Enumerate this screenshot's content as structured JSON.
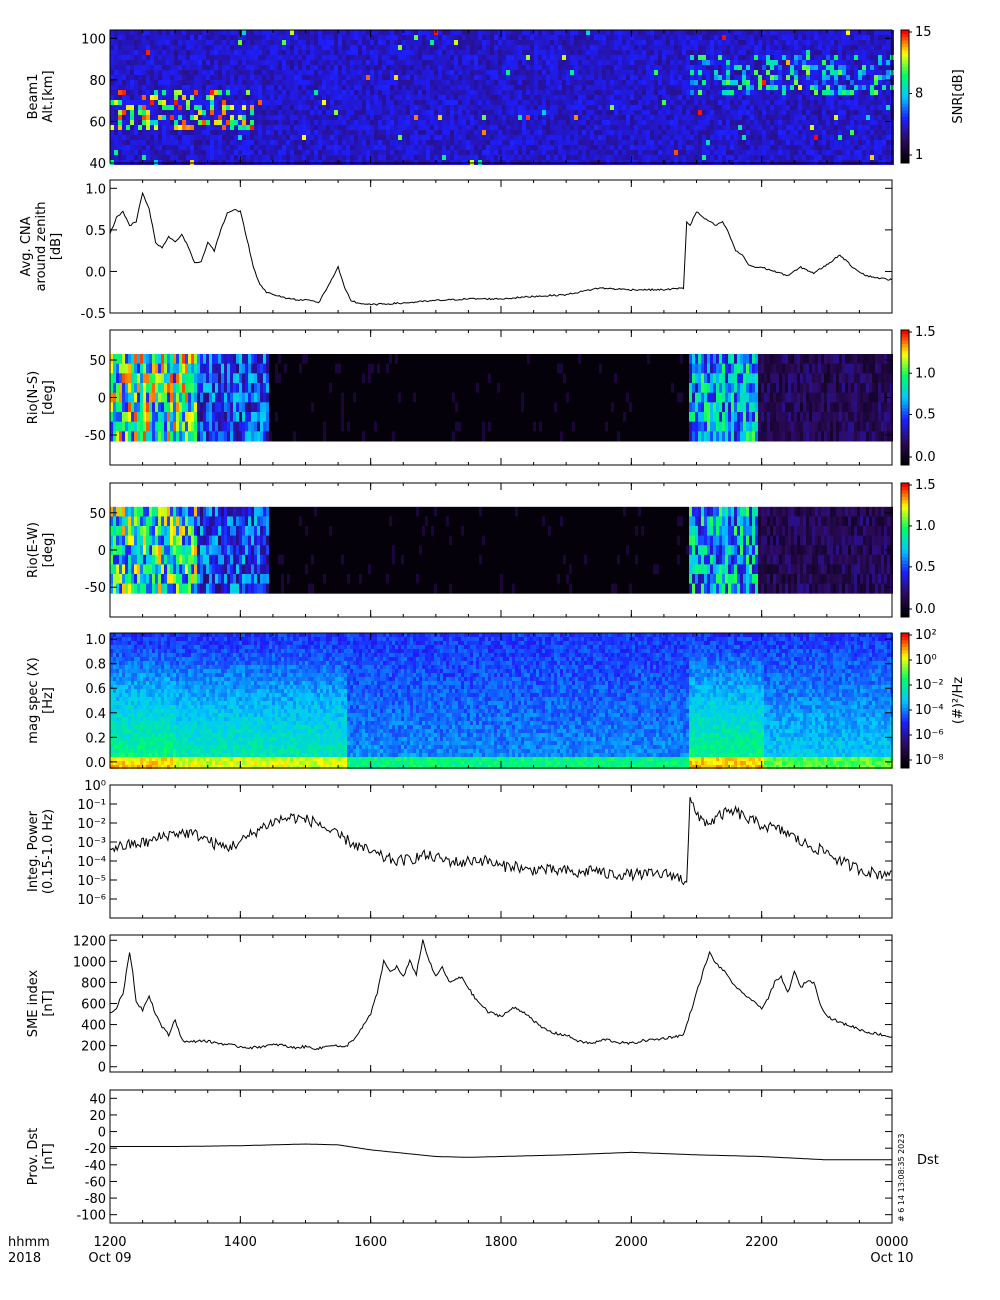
{
  "colors": {
    "line": "#000000",
    "spectrum_scale": [
      "#000000",
      "#2a0a5e",
      "#2020ff",
      "#00c8ff",
      "#00ff66",
      "#ffff00",
      "#ff0000"
    ]
  },
  "time_axis": {
    "ticks": [
      {
        "t": 1200,
        "label": "1200"
      },
      {
        "t": 1400,
        "label": "1400"
      },
      {
        "t": 1600,
        "label": "1600"
      },
      {
        "t": 1800,
        "label": "1800"
      },
      {
        "t": 2000,
        "label": "2000"
      },
      {
        "t": 2200,
        "label": "2200"
      },
      {
        "t": 2400,
        "label": "0000"
      }
    ],
    "row_labels": {
      "hhmm": "hhmm",
      "year": "2018"
    },
    "date_start": "Oct 09",
    "date_end": "Oct 10"
  },
  "footer": {
    "stamp": "# 6 14 13:08:35 2023",
    "dst_tag": "Dst"
  },
  "chart_data": [
    {
      "id": "beam1",
      "type": "heatmap",
      "ylabel": [
        "Beam1",
        "Alt.[km]"
      ],
      "ylim": [
        40,
        104
      ],
      "yticks": [
        {
          "v": 40,
          "label": "40"
        },
        {
          "v": 60,
          "label": "60"
        },
        {
          "v": 80,
          "label": "80"
        },
        {
          "v": 100,
          "label": "100"
        }
      ],
      "colorbar": {
        "label": "SNR[dB]",
        "ticks": [
          {
            "label": "15"
          },
          {
            "label": "8"
          },
          {
            "label": "1"
          }
        ]
      },
      "bands": [
        {
          "t0": 1200,
          "t1": 1420,
          "y0": 56,
          "y1": 76,
          "level": 0.55
        },
        {
          "t0": 2085,
          "t1": 2400,
          "y0": 75,
          "y1": 92,
          "level": 0.3
        }
      ]
    },
    {
      "id": "cna",
      "type": "line",
      "ylabel": [
        "Avg. CNA",
        "around zenith",
        "[dB]"
      ],
      "ylim": [
        -0.5,
        1.1
      ],
      "yticks": [
        {
          "v": -0.5,
          "label": "-0.5"
        },
        {
          "v": 0,
          "label": "0.0"
        },
        {
          "v": 0.5,
          "label": "0.5"
        },
        {
          "v": 1.0,
          "label": "1.0"
        }
      ],
      "x": [
        1200,
        1210,
        1220,
        1230,
        1240,
        1250,
        1260,
        1270,
        1280,
        1290,
        1300,
        1310,
        1320,
        1330,
        1340,
        1350,
        1360,
        1370,
        1380,
        1390,
        1400,
        1410,
        1420,
        1430,
        1440,
        1450,
        1460,
        1470,
        1480,
        1490,
        1500,
        1520,
        1540,
        1550,
        1560,
        1570,
        1580,
        1600,
        1650,
        1700,
        1750,
        1800,
        1850,
        1900,
        1950,
        2000,
        2050,
        2080,
        2085,
        2090,
        2100,
        2110,
        2120,
        2130,
        2140,
        2150,
        2160,
        2170,
        2180,
        2190,
        2200,
        2220,
        2240,
        2260,
        2280,
        2300,
        2320,
        2340,
        2360,
        2380,
        2400
      ],
      "values": [
        0.45,
        0.65,
        0.72,
        0.55,
        0.6,
        0.95,
        0.75,
        0.35,
        0.28,
        0.42,
        0.35,
        0.45,
        0.3,
        0.1,
        0.12,
        0.35,
        0.25,
        0.5,
        0.7,
        0.75,
        0.72,
        0.4,
        0.05,
        -0.15,
        -0.25,
        -0.28,
        -0.3,
        -0.32,
        -0.33,
        -0.35,
        -0.33,
        -0.38,
        -0.1,
        0.05,
        -0.2,
        -0.35,
        -0.38,
        -0.4,
        -0.38,
        -0.35,
        -0.33,
        -0.33,
        -0.3,
        -0.28,
        -0.2,
        -0.22,
        -0.22,
        -0.2,
        0.6,
        0.55,
        0.72,
        0.65,
        0.6,
        0.55,
        0.6,
        0.45,
        0.25,
        0.2,
        0.08,
        0.05,
        0.05,
        0.0,
        -0.05,
        0.05,
        -0.02,
        0.08,
        0.2,
        0.05,
        -0.05,
        -0.08,
        -0.1
      ]
    },
    {
      "id": "rio_ns",
      "type": "heatmap",
      "ylabel": [
        "Rio(N-S)",
        "[deg]"
      ],
      "ylim": [
        -90,
        90
      ],
      "yticks": [
        {
          "v": -50,
          "label": "-50"
        },
        {
          "v": 0,
          "label": "0"
        },
        {
          "v": 50,
          "label": "50"
        }
      ],
      "data_range": [
        -58,
        58
      ],
      "colorbar": {
        "ticks": [
          {
            "label": "1.5"
          },
          {
            "label": "1.0"
          },
          {
            "label": "0.5"
          },
          {
            "label": "0.0"
          }
        ]
      },
      "activity": [
        {
          "t0": 1200,
          "t1": 1330,
          "level": 0.8
        },
        {
          "t0": 1330,
          "t1": 1440,
          "level": 0.45
        },
        {
          "t0": 1440,
          "t1": 2085,
          "level": 0.0
        },
        {
          "t0": 2085,
          "t1": 2190,
          "level": 0.6
        },
        {
          "t0": 2190,
          "t1": 2400,
          "level": 0.18
        }
      ]
    },
    {
      "id": "rio_ew",
      "type": "heatmap",
      "ylabel": [
        "Rio(E-W)",
        "[deg]"
      ],
      "ylim": [
        -90,
        90
      ],
      "yticks": [
        {
          "v": -50,
          "label": "-50"
        },
        {
          "v": 0,
          "label": "0"
        },
        {
          "v": 50,
          "label": "50"
        }
      ],
      "data_range": [
        -58,
        58
      ],
      "colorbar": {
        "ticks": [
          {
            "label": "1.5"
          },
          {
            "label": "1.0"
          },
          {
            "label": "0.5"
          },
          {
            "label": "0.0"
          }
        ]
      },
      "activity": [
        {
          "t0": 1200,
          "t1": 1330,
          "level": 0.75
        },
        {
          "t0": 1330,
          "t1": 1440,
          "level": 0.45
        },
        {
          "t0": 1440,
          "t1": 2085,
          "level": 0.0
        },
        {
          "t0": 2085,
          "t1": 2190,
          "level": 0.6
        },
        {
          "t0": 2190,
          "t1": 2400,
          "level": 0.18
        }
      ]
    },
    {
      "id": "mag_spec",
      "type": "heatmap",
      "ylabel": [
        "mag spec (X)",
        "[Hz]"
      ],
      "ylim": [
        -0.05,
        1.05
      ],
      "yticks": [
        {
          "v": 0,
          "label": "0.0"
        },
        {
          "v": 0.2,
          "label": "0.2"
        },
        {
          "v": 0.4,
          "label": "0.4"
        },
        {
          "v": 0.6,
          "label": "0.6"
        },
        {
          "v": 0.8,
          "label": "0.8"
        },
        {
          "v": 1.0,
          "label": "1.0"
        }
      ],
      "colorbar": {
        "label": "(#)²/Hz",
        "ticks": [
          {
            "label": "10²"
          },
          {
            "label": "10⁰"
          },
          {
            "label": "10⁻²"
          },
          {
            "label": "10⁻⁴"
          },
          {
            "label": "10⁻⁶"
          },
          {
            "label": "10⁻⁸"
          }
        ]
      },
      "bursts": [
        {
          "t0": 1200,
          "t1": 1300,
          "level": 0.55
        },
        {
          "t0": 1300,
          "t1": 1560,
          "level": 0.45
        },
        {
          "t0": 1560,
          "t1": 2085,
          "level": 0.15
        },
        {
          "t0": 2085,
          "t1": 2200,
          "level": 0.55
        },
        {
          "t0": 2200,
          "t1": 2400,
          "level": 0.3
        }
      ]
    },
    {
      "id": "integ_power",
      "type": "line",
      "yscale": "log",
      "ylabel": [
        "Integ. Power",
        "(0.15-1.0 Hz)"
      ],
      "ylim": [
        1e-07,
        1
      ],
      "yticks": [
        {
          "v": 1,
          "label": "10⁰"
        },
        {
          "v": 0.1,
          "label": "10⁻¹"
        },
        {
          "v": 0.01,
          "label": "10⁻²"
        },
        {
          "v": 0.001,
          "label": "10⁻³"
        },
        {
          "v": 0.0001,
          "label": "10⁻⁴"
        },
        {
          "v": 1e-05,
          "label": "10⁻⁵"
        },
        {
          "v": 1e-06,
          "label": "10⁻⁶"
        }
      ],
      "x": [
        1200,
        1220,
        1240,
        1260,
        1280,
        1300,
        1320,
        1340,
        1360,
        1380,
        1400,
        1420,
        1440,
        1460,
        1480,
        1500,
        1520,
        1540,
        1560,
        1580,
        1600,
        1620,
        1640,
        1660,
        1680,
        1700,
        1720,
        1740,
        1760,
        1780,
        1800,
        1820,
        1840,
        1860,
        1880,
        1900,
        1920,
        1940,
        1960,
        1980,
        2000,
        2020,
        2040,
        2060,
        2080,
        2085,
        2090,
        2100,
        2120,
        2140,
        2160,
        2180,
        2200,
        2220,
        2240,
        2260,
        2280,
        2300,
        2320,
        2340,
        2360,
        2380,
        2400
      ],
      "values": [
        0.0005,
        0.0006,
        0.0008,
        0.001,
        0.002,
        0.003,
        0.003,
        0.002,
        0.0008,
        0.0005,
        0.001,
        0.003,
        0.008,
        0.015,
        0.02,
        0.015,
        0.01,
        0.003,
        0.0015,
        0.0006,
        0.0003,
        0.00015,
        0.0001,
        0.00012,
        0.0002,
        0.00015,
        0.0001,
        8e-05,
        0.00012,
        0.0001,
        5e-05,
        6e-05,
        3e-05,
        4e-05,
        3e-05,
        3e-05,
        2e-05,
        4e-05,
        2e-05,
        2e-05,
        2e-05,
        2e-05,
        2e-05,
        2e-05,
        1e-05,
        1e-05,
        0.3,
        0.02,
        0.01,
        0.03,
        0.04,
        0.015,
        0.008,
        0.005,
        0.003,
        0.001,
        0.0005,
        0.0003,
        0.0001,
        5e-05,
        3e-05,
        2e-05,
        3e-05
      ]
    },
    {
      "id": "sme",
      "type": "line",
      "ylabel": [
        "SME index",
        "[nT]"
      ],
      "ylim": [
        -50,
        1250
      ],
      "yticks": [
        {
          "v": 0,
          "label": "0"
        },
        {
          "v": 200,
          "label": "200"
        },
        {
          "v": 400,
          "label": "400"
        },
        {
          "v": 600,
          "label": "600"
        },
        {
          "v": 800,
          "label": "800"
        },
        {
          "v": 1000,
          "label": "1000"
        },
        {
          "v": 1200,
          "label": "1200"
        }
      ],
      "x": [
        1200,
        1210,
        1220,
        1230,
        1235,
        1240,
        1250,
        1260,
        1270,
        1280,
        1290,
        1300,
        1310,
        1320,
        1340,
        1360,
        1380,
        1400,
        1420,
        1440,
        1460,
        1480,
        1500,
        1520,
        1540,
        1560,
        1580,
        1600,
        1610,
        1620,
        1630,
        1640,
        1650,
        1660,
        1670,
        1680,
        1690,
        1700,
        1710,
        1720,
        1740,
        1760,
        1780,
        1800,
        1820,
        1840,
        1860,
        1880,
        1900,
        1920,
        1940,
        1960,
        1980,
        2000,
        2020,
        2040,
        2060,
        2080,
        2090,
        2100,
        2110,
        2120,
        2130,
        2140,
        2150,
        2160,
        2170,
        2180,
        2190,
        2200,
        2210,
        2220,
        2230,
        2240,
        2250,
        2260,
        2270,
        2280,
        2290,
        2300,
        2320,
        2340,
        2360,
        2380,
        2400
      ],
      "values": [
        500,
        560,
        700,
        1080,
        900,
        620,
        540,
        680,
        500,
        380,
        300,
        450,
        260,
        230,
        250,
        230,
        210,
        190,
        180,
        200,
        210,
        180,
        190,
        170,
        210,
        180,
        300,
        500,
        700,
        1000,
        900,
        950,
        850,
        1000,
        880,
        1200,
        1000,
        850,
        950,
        800,
        850,
        650,
        520,
        480,
        560,
        500,
        380,
        320,
        300,
        240,
        220,
        260,
        230,
        220,
        250,
        260,
        280,
        300,
        500,
        700,
        900,
        1080,
        980,
        920,
        850,
        750,
        700,
        660,
        600,
        560,
        650,
        800,
        850,
        700,
        900,
        750,
        820,
        800,
        600,
        480,
        420,
        380,
        330,
        310,
        280
      ]
    },
    {
      "id": "dst",
      "type": "line",
      "ylabel": [
        "Prov. Dst",
        "[nT]"
      ],
      "ylim": [
        -110,
        50
      ],
      "yticks": [
        {
          "v": -100,
          "label": "-100"
        },
        {
          "v": -80,
          "label": "-80"
        },
        {
          "v": -60,
          "label": "-60"
        },
        {
          "v": -40,
          "label": "-40"
        },
        {
          "v": -20,
          "label": "-20"
        },
        {
          "v": 0,
          "label": "0"
        },
        {
          "v": 20,
          "label": "20"
        },
        {
          "v": 40,
          "label": "40"
        }
      ],
      "x": [
        1200,
        1300,
        1400,
        1500,
        1550,
        1600,
        1700,
        1750,
        1800,
        1900,
        2000,
        2100,
        2200,
        2300,
        2400
      ],
      "values": [
        -18,
        -18,
        -17,
        -15,
        -16,
        -22,
        -30,
        -31,
        -30,
        -28,
        -25,
        -28,
        -30,
        -34,
        -34
      ]
    }
  ]
}
